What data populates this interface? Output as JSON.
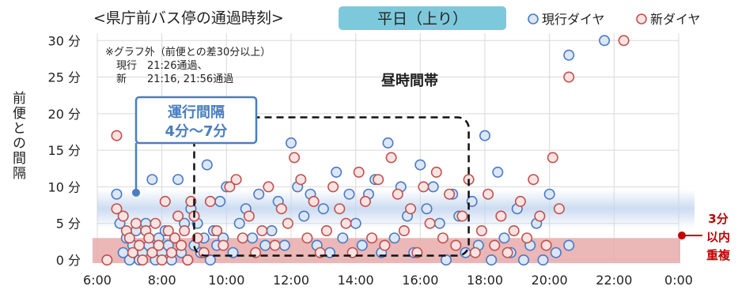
{
  "chart_data": {
    "type": "scatter",
    "title": "<県庁前バス停の通過時刻>",
    "direction_badge": "平日（上り）",
    "ylabel": "前便との間隔",
    "y_ticks": [
      "0 分",
      "5 分",
      "10 分",
      "15 分",
      "20 分",
      "25 分",
      "30 分"
    ],
    "x_ticks": [
      "6:00",
      "8:00",
      "10:00",
      "12:00",
      "14:00",
      "16:00",
      "18:00",
      "20:00",
      "22:00",
      "0:00"
    ],
    "xlim_hours": [
      6,
      24
    ],
    "ylim": [
      0,
      31
    ],
    "grid": true,
    "legend_position": "top-right",
    "legend": {
      "current": "現行ダイヤ",
      "new": "新ダイヤ"
    },
    "note": {
      "line1": "※グラフ外（前便との差30分以上）",
      "line2": "現行　21:26通過、",
      "line3": "新　　21:16, 21:56通過"
    },
    "daytime_label": "昼時間帯",
    "daytime_range": {
      "x": [
        9.0,
        17.5
      ],
      "y": [
        0.6,
        19.5
      ]
    },
    "interval_callout": {
      "line1": "運行間隔",
      "line2": "4分〜7分"
    },
    "interval_band": [
      5,
      9
    ],
    "interval_point": [
      7.2,
      9.2
    ],
    "overlap_band": [
      0,
      3
    ],
    "overlap_label": {
      "line1": "3分",
      "line2": "以内",
      "line3": "重複"
    },
    "colors": {
      "current": "#4a78c6",
      "current_fill": "#dce7f5",
      "new": "#c0504d",
      "new_fill": "#fbe3e3",
      "badge": "#7ec8dc",
      "callout": "#4a7ec0",
      "overlap": "#e8aaaa",
      "band": "#c4d6ef"
    },
    "series": [
      {
        "name": "現行ダイヤ",
        "points": [
          [
            6.6,
            9
          ],
          [
            6.7,
            5
          ],
          [
            6.8,
            1
          ],
          [
            6.9,
            3
          ],
          [
            7.0,
            0
          ],
          [
            7.1,
            2
          ],
          [
            7.2,
            4
          ],
          [
            7.3,
            0
          ],
          [
            7.4,
            1
          ],
          [
            7.5,
            5
          ],
          [
            7.6,
            2
          ],
          [
            7.7,
            11
          ],
          [
            7.8,
            0
          ],
          [
            7.9,
            3
          ],
          [
            8.0,
            1
          ],
          [
            8.1,
            4
          ],
          [
            8.2,
            2
          ],
          [
            8.3,
            0
          ],
          [
            8.4,
            3
          ],
          [
            8.5,
            11
          ],
          [
            8.6,
            1
          ],
          [
            8.7,
            5
          ],
          [
            8.8,
            0
          ],
          [
            8.9,
            7
          ],
          [
            9.0,
            2
          ],
          [
            9.1,
            5
          ],
          [
            9.2,
            1
          ],
          [
            9.3,
            3
          ],
          [
            9.4,
            13
          ],
          [
            9.5,
            0
          ],
          [
            9.6,
            4
          ],
          [
            9.7,
            2
          ],
          [
            9.8,
            8
          ],
          [
            9.9,
            3
          ],
          [
            10.0,
            10
          ],
          [
            10.2,
            1
          ],
          [
            10.4,
            5
          ],
          [
            10.6,
            7
          ],
          [
            10.8,
            3
          ],
          [
            11.0,
            9
          ],
          [
            11.2,
            2
          ],
          [
            11.4,
            4
          ],
          [
            11.6,
            8
          ],
          [
            11.8,
            2
          ],
          [
            12.0,
            16
          ],
          [
            12.2,
            10
          ],
          [
            12.4,
            6
          ],
          [
            12.6,
            9
          ],
          [
            12.8,
            2
          ],
          [
            13.0,
            7
          ],
          [
            13.2,
            1
          ],
          [
            13.4,
            12
          ],
          [
            13.6,
            3
          ],
          [
            13.8,
            9
          ],
          [
            14.0,
            5
          ],
          [
            14.2,
            2
          ],
          [
            14.4,
            9
          ],
          [
            14.6,
            11
          ],
          [
            14.8,
            1
          ],
          [
            15.0,
            16
          ],
          [
            15.2,
            3
          ],
          [
            15.4,
            10
          ],
          [
            15.6,
            6
          ],
          [
            15.8,
            1
          ],
          [
            16.0,
            13
          ],
          [
            16.2,
            7
          ],
          [
            16.4,
            10
          ],
          [
            16.6,
            5
          ],
          [
            16.8,
            0
          ],
          [
            17.0,
            9
          ],
          [
            17.2,
            6
          ],
          [
            17.4,
            1
          ],
          [
            17.6,
            8
          ],
          [
            17.8,
            2
          ],
          [
            18.0,
            17
          ],
          [
            18.2,
            0
          ],
          [
            18.4,
            12
          ],
          [
            18.6,
            3
          ],
          [
            18.8,
            1
          ],
          [
            19.0,
            7
          ],
          [
            19.2,
            0
          ],
          [
            19.4,
            2
          ],
          [
            19.6,
            5
          ],
          [
            19.8,
            0
          ],
          [
            20.0,
            9
          ],
          [
            20.2,
            1
          ],
          [
            20.6,
            2
          ],
          [
            20.6,
            28
          ],
          [
            21.7,
            30
          ]
        ]
      },
      {
        "name": "新ダイヤ",
        "points": [
          [
            6.6,
            17
          ],
          [
            6.6,
            7
          ],
          [
            6.8,
            6
          ],
          [
            6.9,
            4
          ],
          [
            7.0,
            3
          ],
          [
            7.1,
            1
          ],
          [
            7.2,
            5
          ],
          [
            7.3,
            2
          ],
          [
            7.4,
            0
          ],
          [
            7.5,
            4
          ],
          [
            7.6,
            3
          ],
          [
            7.7,
            1
          ],
          [
            7.8,
            5
          ],
          [
            7.9,
            2
          ],
          [
            8.0,
            0
          ],
          [
            8.1,
            8
          ],
          [
            8.2,
            4
          ],
          [
            8.3,
            1
          ],
          [
            8.4,
            3
          ],
          [
            8.5,
            6
          ],
          [
            8.6,
            2
          ],
          [
            8.7,
            4
          ],
          [
            8.8,
            0
          ],
          [
            8.9,
            8
          ],
          [
            9.0,
            6
          ],
          [
            9.1,
            3
          ],
          [
            9.3,
            1
          ],
          [
            9.5,
            8
          ],
          [
            9.7,
            4
          ],
          [
            9.9,
            2
          ],
          [
            10.1,
            10
          ],
          [
            10.3,
            11
          ],
          [
            10.5,
            3
          ],
          [
            10.7,
            6
          ],
          [
            10.9,
            1
          ],
          [
            11.1,
            4
          ],
          [
            11.3,
            10
          ],
          [
            11.5,
            2
          ],
          [
            11.7,
            7
          ],
          [
            11.9,
            5
          ],
          [
            12.1,
            14
          ],
          [
            12.3,
            11
          ],
          [
            12.5,
            3
          ],
          [
            12.7,
            8
          ],
          [
            12.9,
            1
          ],
          [
            13.1,
            4
          ],
          [
            13.3,
            10
          ],
          [
            13.5,
            7
          ],
          [
            13.7,
            5
          ],
          [
            13.9,
            1
          ],
          [
            14.1,
            12
          ],
          [
            14.3,
            8
          ],
          [
            14.5,
            3
          ],
          [
            14.7,
            11
          ],
          [
            14.9,
            2
          ],
          [
            15.1,
            14
          ],
          [
            15.3,
            9
          ],
          [
            15.5,
            4
          ],
          [
            15.7,
            7
          ],
          [
            15.9,
            1
          ],
          [
            16.1,
            10
          ],
          [
            16.3,
            5
          ],
          [
            16.5,
            12
          ],
          [
            16.7,
            3
          ],
          [
            16.9,
            9
          ],
          [
            17.1,
            2
          ],
          [
            17.3,
            6
          ],
          [
            17.5,
            11
          ],
          [
            17.7,
            1
          ],
          [
            17.9,
            4
          ],
          [
            18.1,
            9
          ],
          [
            18.3,
            2
          ],
          [
            18.5,
            6
          ],
          [
            18.7,
            1
          ],
          [
            18.9,
            4
          ],
          [
            19.1,
            8
          ],
          [
            19.3,
            3
          ],
          [
            19.5,
            11
          ],
          [
            19.7,
            6
          ],
          [
            19.9,
            2
          ],
          [
            20.1,
            14
          ],
          [
            20.3,
            7
          ],
          [
            20.6,
            25
          ],
          [
            22.3,
            30
          ],
          [
            6.3,
            0
          ]
        ]
      }
    ]
  }
}
